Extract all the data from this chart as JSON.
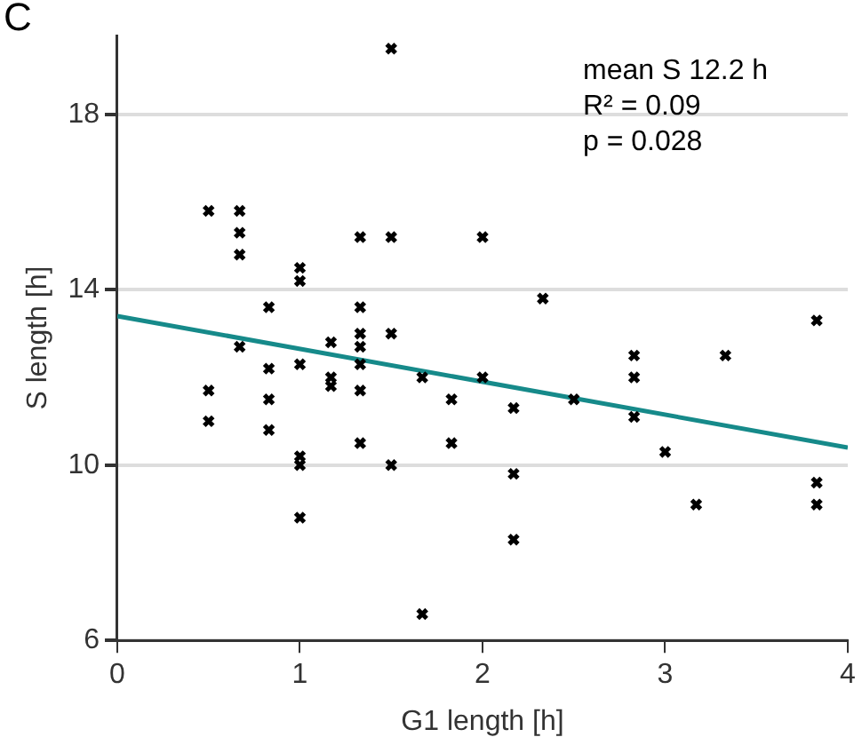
{
  "chart_data": {
    "type": "scatter",
    "xlabel": "G1 length [h]",
    "ylabel": "S length [h]",
    "xlim": [
      0,
      4
    ],
    "xticks": [
      0,
      1,
      2,
      3,
      4
    ],
    "ylim": [
      6,
      19.8
    ],
    "yticks": [
      6,
      10,
      14,
      18
    ],
    "grid": "y",
    "annotations": [
      "C",
      "mean S 12.2 h",
      "R² = 0.09",
      "p = 0.028"
    ],
    "series": [
      {
        "type": "scatter",
        "marker": "cross",
        "color": "#000000",
        "x": [
          0.5,
          0.5,
          0.5,
          0.67,
          0.67,
          0.67,
          0.67,
          0.83,
          0.83,
          0.83,
          0.83,
          1,
          1,
          1,
          1,
          1,
          1,
          1.17,
          1.17,
          1.17,
          1.33,
          1.33,
          1.33,
          1.33,
          1.33,
          1.33,
          1.33,
          1.5,
          1.5,
          1.5,
          1.5,
          1.67,
          1.67,
          1.83,
          1.83,
          2,
          2,
          2.17,
          2.17,
          2.17,
          2.33,
          2.5,
          2.83,
          2.83,
          2.83,
          3,
          3.17,
          3.33,
          3.83,
          3.83,
          3.83
        ],
        "values": [
          15.8,
          11.7,
          11,
          15.8,
          15.3,
          14.8,
          12.7,
          13.6,
          12.2,
          11.5,
          10.8,
          14.5,
          14.2,
          12.3,
          10.2,
          10,
          8.8,
          12.8,
          12,
          11.8,
          15.2,
          13.6,
          13,
          12.7,
          12.3,
          11.7,
          10.5,
          19.5,
          15.2,
          13,
          10,
          12,
          6.6,
          11.5,
          10.5,
          15.2,
          12,
          11.3,
          9.8,
          8.3,
          13.8,
          11.5,
          12.5,
          12,
          11.1,
          10.3,
          9.1,
          12.5,
          13.3,
          9.6,
          9.1
        ]
      },
      {
        "type": "line",
        "color": "#168a8a",
        "x": [
          0,
          4
        ],
        "values": [
          13.4,
          10.4
        ]
      }
    ]
  }
}
